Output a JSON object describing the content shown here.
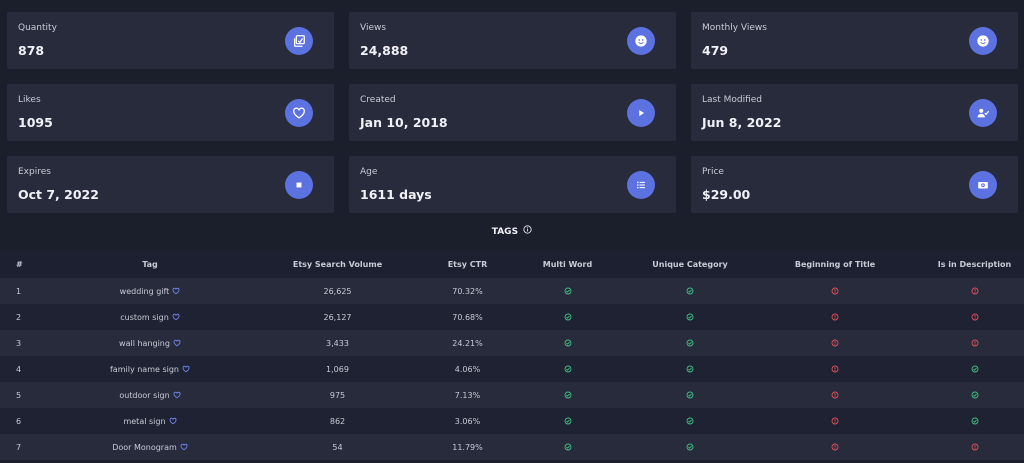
{
  "stats": [
    {
      "label": "Quantity",
      "value": "878",
      "icon": "copy-icon"
    },
    {
      "label": "Views",
      "value": "24,888",
      "icon": "smile-icon"
    },
    {
      "label": "Monthly Views",
      "value": "479",
      "icon": "smile-icon"
    },
    {
      "label": "Likes",
      "value": "1095",
      "icon": "heart-icon"
    },
    {
      "label": "Created",
      "value": "Jan 10, 2018",
      "icon": "play-icon"
    },
    {
      "label": "Last Modified",
      "value": "Jun 8, 2022",
      "icon": "user-check-icon"
    },
    {
      "label": "Expires",
      "value": "Oct 7, 2022",
      "icon": "stop-icon"
    },
    {
      "label": "Age",
      "value": "1611 days",
      "icon": "list-icon"
    },
    {
      "label": "Price",
      "value": "$29.00",
      "icon": "money-icon"
    }
  ],
  "tags_title": "TAGS",
  "colors": {
    "ok": "#3fbf7f",
    "bad": "#e0505a",
    "accent": "#5b72e0",
    "heart": "#6f86f0"
  },
  "table": {
    "headers": [
      "#",
      "Tag",
      "Etsy Search Volume",
      "Etsy CTR",
      "Multi Word",
      "Unique Category",
      "Beginning of Title",
      "Is in Description"
    ],
    "rows": [
      {
        "num": "1",
        "tag": "wedding gift",
        "volume": "26,625",
        "ctr": "70.32%",
        "multi": true,
        "unique": true,
        "begin": false,
        "desc": false
      },
      {
        "num": "2",
        "tag": "custom sign",
        "volume": "26,127",
        "ctr": "70.68%",
        "multi": true,
        "unique": true,
        "begin": false,
        "desc": false
      },
      {
        "num": "3",
        "tag": "wall hanging",
        "volume": "3,433",
        "ctr": "24.21%",
        "multi": true,
        "unique": true,
        "begin": false,
        "desc": false
      },
      {
        "num": "4",
        "tag": "family name sign",
        "volume": "1,069",
        "ctr": "4.06%",
        "multi": true,
        "unique": true,
        "begin": false,
        "desc": true
      },
      {
        "num": "5",
        "tag": "outdoor sign",
        "volume": "975",
        "ctr": "7.13%",
        "multi": true,
        "unique": true,
        "begin": false,
        "desc": true
      },
      {
        "num": "6",
        "tag": "metal sign",
        "volume": "862",
        "ctr": "3.06%",
        "multi": true,
        "unique": true,
        "begin": false,
        "desc": true
      },
      {
        "num": "7",
        "tag": "Door Monogram",
        "volume": "54",
        "ctr": "11.79%",
        "multi": true,
        "unique": true,
        "begin": false,
        "desc": false
      }
    ]
  }
}
